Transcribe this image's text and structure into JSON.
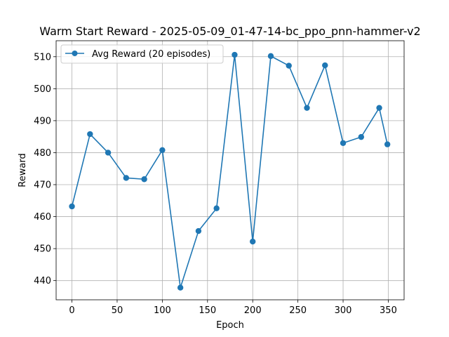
{
  "chart_data": {
    "type": "line",
    "title": "Warm Start Reward - 2025-05-09_01-47-14-bc_ppo_pnn-hammer-v2",
    "xlabel": "Epoch",
    "ylabel": "Reward",
    "xlim": [
      -17.5,
      367.5
    ],
    "ylim": [
      434,
      515
    ],
    "xticks": [
      0,
      50,
      100,
      150,
      200,
      250,
      300,
      350
    ],
    "yticks": [
      440,
      450,
      460,
      470,
      480,
      490,
      500,
      510
    ],
    "grid": true,
    "legend_position": "top-left",
    "color": "#1f77b4",
    "series": [
      {
        "name": "Avg Reward (20 episodes)",
        "x": [
          0,
          20,
          40,
          60,
          80,
          100,
          120,
          140,
          160,
          180,
          200,
          220,
          240,
          260,
          280,
          300,
          320,
          340,
          349
        ],
        "y": [
          463.2,
          485.8,
          480.0,
          472.1,
          471.7,
          480.8,
          437.8,
          455.5,
          462.6,
          510.6,
          452.2,
          510.2,
          507.2,
          494.0,
          507.3,
          483.0,
          484.9,
          494.0,
          482.6
        ]
      }
    ]
  }
}
